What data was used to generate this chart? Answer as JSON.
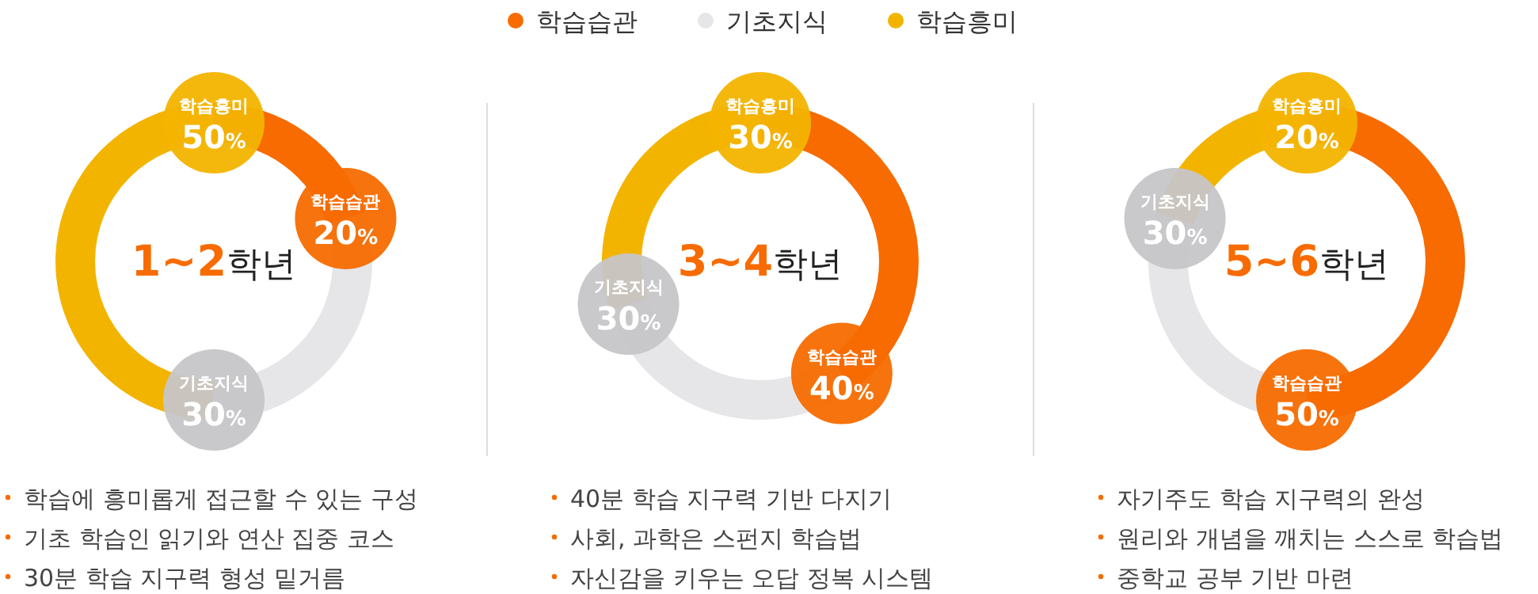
{
  "chart_data": [
    {
      "type": "donut",
      "title": "1~2학년",
      "legend": "top",
      "categories": [
        "학습습관",
        "기초지식",
        "학습흥미"
      ],
      "values": [
        20,
        30,
        50
      ],
      "colors": [
        "#f76b00",
        "#e6e6e8",
        "#f3b400"
      ],
      "value_labels": [
        "20%",
        "30%",
        "50%"
      ],
      "annotations": [
        "학습에 흥미롭게 접근할 수 있는 구성",
        "기초 학습인 읽기와 연산 집중 코스",
        "30분 학습 지구력 형성 밑거름"
      ]
    },
    {
      "type": "donut",
      "title": "3~4학년",
      "categories": [
        "학습습관",
        "기초지식",
        "학습흥미"
      ],
      "values": [
        40,
        30,
        30
      ],
      "colors": [
        "#f76b00",
        "#e6e6e8",
        "#f3b400"
      ],
      "value_labels": [
        "40%",
        "30%",
        "30%"
      ],
      "annotations": [
        "40분 학습 지구력 기반 다지기",
        "사회, 과학은 스펀지 학습법",
        "자신감을 키우는 오답 정복 시스템"
      ]
    },
    {
      "type": "donut",
      "title": "5~6학년",
      "categories": [
        "학습습관",
        "기초지식",
        "학습흥미"
      ],
      "values": [
        50,
        30,
        20
      ],
      "colors": [
        "#f76b00",
        "#e6e6e8",
        "#f3b400"
      ],
      "value_labels": [
        "50%",
        "30%",
        "20%"
      ],
      "annotations": [
        "자기주도 학습 지구력의 완성",
        "원리와 개념을 깨치는 스스로 학습법",
        "중학교 공부 기반 마련"
      ]
    }
  ]
}
